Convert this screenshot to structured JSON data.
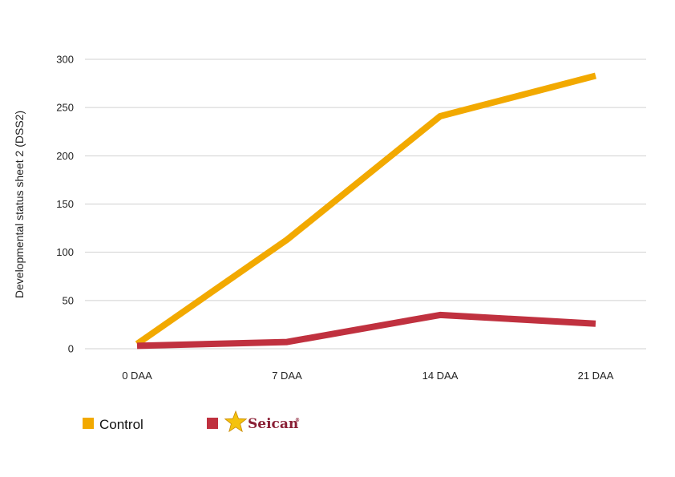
{
  "chart_data": {
    "type": "line",
    "title": "",
    "xlabel": "",
    "ylabel": "Developmental status sheet 2 (DSS2)",
    "categories": [
      "0 DAA",
      "7 DAA",
      "14 DAA",
      "21 DAA"
    ],
    "ylim": [
      0,
      300
    ],
    "yticks": [
      0,
      50,
      100,
      150,
      200,
      250,
      300
    ],
    "grid": true,
    "legend_position": "bottom-left",
    "series": [
      {
        "name": "Control",
        "color": "#f2a900",
        "values": [
          5,
          113,
          241,
          283
        ]
      },
      {
        "name": "Seican",
        "color": "#c0313f",
        "values": [
          3,
          7,
          35,
          26
        ]
      }
    ]
  },
  "legend": {
    "control_label": "Control",
    "brand_label": "Seican",
    "brand_mark": "®"
  },
  "colors": {
    "grid": "#d0d0d0",
    "star": "#f4c20d",
    "brand_text": "#8a1f35"
  }
}
